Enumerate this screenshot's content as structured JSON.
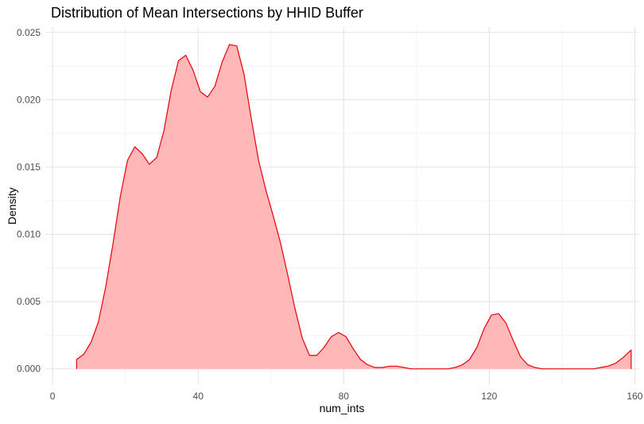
{
  "chart_data": {
    "type": "area",
    "title": "Distribution of Mean Intersections by HHID Buffer",
    "xlabel": "num_ints",
    "ylabel": "Density",
    "xlim": [
      -2,
      161
    ],
    "ylim": [
      -0.0012,
      0.0254
    ],
    "x_ticks": [
      0,
      40,
      80,
      120,
      160
    ],
    "y_ticks": [
      0.0,
      0.005,
      0.01,
      0.015,
      0.02,
      0.025
    ],
    "x_tick_labels": [
      "0",
      "40",
      "80",
      "120",
      "160"
    ],
    "y_tick_labels": [
      "0.000",
      "0.005",
      "0.010",
      "0.015",
      "0.020",
      "0.025"
    ],
    "grid": true,
    "legend": "none",
    "fill_color": "#ffb3b3",
    "line_color": "#e8000b",
    "series": [
      {
        "x": [
          6.6,
          8.6,
          10.6,
          12.6,
          14.6,
          16.6,
          18.6,
          20.6,
          22.6,
          24.6,
          26.6,
          28.6,
          30.6,
          32.6,
          34.6,
          36.6,
          38.6,
          40.6,
          42.6,
          44.6,
          46.6,
          48.6,
          50.6,
          52.6,
          54.6,
          56.6,
          58.6,
          60.6,
          62.6,
          64.6,
          66.6,
          68.6,
          70.6,
          72.6,
          74.6,
          76.6,
          78.6,
          80.6,
          82.6,
          84.6,
          86.6,
          88.6,
          90.6,
          92.6,
          94.6,
          96.6,
          98.6,
          100.6,
          102.6,
          104.6,
          106.6,
          108.6,
          110.6,
          112.6,
          114.6,
          116.6,
          118.6,
          120.6,
          122.6,
          124.6,
          126.6,
          128.6,
          130.6,
          132.6,
          134.6,
          136.6,
          138.6,
          140.6,
          142.6,
          144.6,
          146.6,
          148.6,
          150.6,
          152.6,
          154.6,
          156.6,
          158.6,
          159.0
        ],
        "y": [
          0.0007,
          0.0011,
          0.002,
          0.0035,
          0.0061,
          0.0093,
          0.0128,
          0.0155,
          0.0165,
          0.016,
          0.0152,
          0.0157,
          0.0177,
          0.0207,
          0.0229,
          0.0233,
          0.0222,
          0.0206,
          0.0202,
          0.021,
          0.0228,
          0.0241,
          0.024,
          0.0219,
          0.0186,
          0.0155,
          0.0133,
          0.0114,
          0.0094,
          0.007,
          0.0045,
          0.0023,
          0.001,
          0.001,
          0.0016,
          0.0024,
          0.0027,
          0.0024,
          0.0015,
          0.0007,
          0.0003,
          0.0001,
          0.0001,
          0.0002,
          0.0002,
          0.0001,
          0.0,
          0.0,
          0.0,
          0.0,
          0.0,
          0.0,
          0.0001,
          0.0003,
          0.0007,
          0.0016,
          0.003,
          0.004,
          0.0041,
          0.0034,
          0.0021,
          0.0009,
          0.0003,
          0.0001,
          0.0,
          0.0,
          0.0,
          0.0,
          0.0,
          0.0,
          0.0,
          0.0,
          0.0001,
          0.0002,
          0.0004,
          0.0008,
          0.0013,
          0.0014
        ]
      }
    ]
  }
}
